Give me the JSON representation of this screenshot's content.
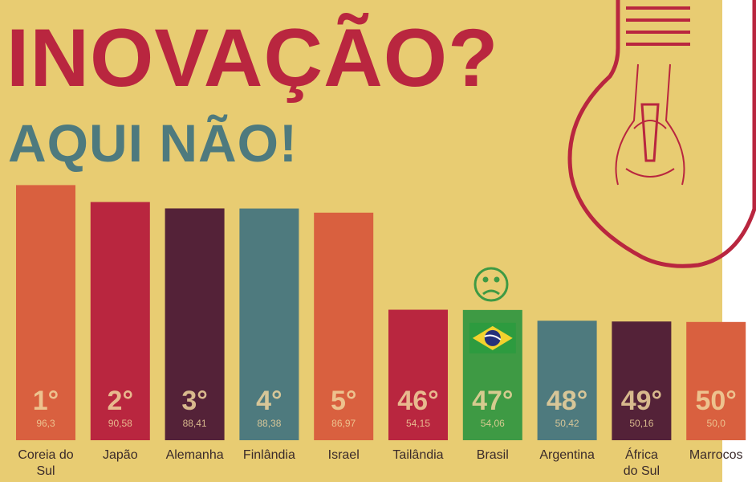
{
  "chart_data": {
    "type": "bar",
    "title": "INOVAÇÃO?",
    "subtitle": "AQUI NÃO!",
    "categories": [
      "Coreia do\nSul",
      "Japão",
      "Alemanha",
      "Finlândia",
      "Israel",
      "Tailândia",
      "Brasil",
      "Argentina",
      "África\ndo Sul",
      "Marrocos"
    ],
    "ranks": [
      "1°",
      "2°",
      "3°",
      "4°",
      "5°",
      "46°",
      "47°",
      "48°",
      "49°",
      "50°"
    ],
    "values": [
      96.3,
      90.58,
      88.41,
      88.38,
      86.97,
      54.15,
      54.06,
      50.42,
      50.16,
      50.0
    ],
    "value_labels": [
      "96,3",
      "90,58",
      "88,41",
      "88,38",
      "86,97",
      "54,15",
      "54,06",
      "50,42",
      "50,16",
      "50,0"
    ],
    "colors": [
      "#d9603f",
      "#b9263f",
      "#542238",
      "#4e7a7e",
      "#d9603f",
      "#b9263f",
      "#3e9a44",
      "#4e7a7e",
      "#542238",
      "#d9603f"
    ]
  }
}
